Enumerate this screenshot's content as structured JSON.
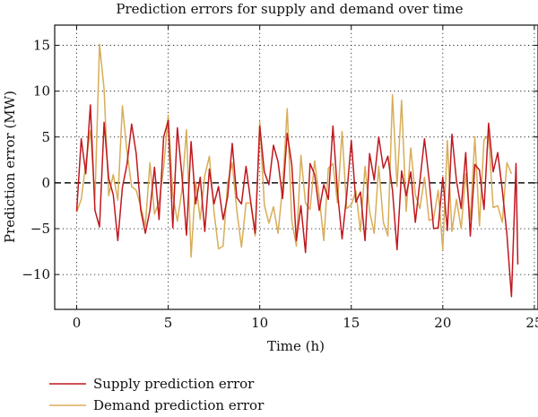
{
  "chart_data": {
    "type": "line",
    "title": "Prediction errors for supply and demand over time",
    "xlabel": "Time (h)",
    "ylabel": "Prediction error (MW)",
    "xlim": [
      -1.2,
      25.2
    ],
    "ylim": [
      -13.8,
      17.2
    ],
    "xticks": [
      0,
      5,
      10,
      15,
      20,
      25
    ],
    "yticks": [
      -10,
      -5,
      0,
      5,
      10,
      15
    ],
    "grid": true,
    "zero_line": true,
    "legend_position": "bottom-left",
    "series": [
      {
        "name": "Supply prediction error",
        "color": "#c0181f",
        "points": [
          [
            0.0,
            -3.1
          ],
          [
            0.25,
            4.8
          ],
          [
            0.5,
            1.0
          ],
          [
            0.75,
            8.5
          ],
          [
            1.0,
            -3.0
          ],
          [
            1.25,
            -4.8
          ],
          [
            1.5,
            6.6
          ],
          [
            1.75,
            0.5
          ],
          [
            2.0,
            -1.3
          ],
          [
            2.25,
            -6.3
          ],
          [
            2.5,
            -0.5
          ],
          [
            2.75,
            2.0
          ],
          [
            3.0,
            6.4
          ],
          [
            3.25,
            3.2
          ],
          [
            3.5,
            -3.0
          ],
          [
            3.75,
            -5.5
          ],
          [
            4.0,
            -3.0
          ],
          [
            4.25,
            1.7
          ],
          [
            4.5,
            -4.0
          ],
          [
            4.75,
            5.0
          ],
          [
            5.0,
            6.8
          ],
          [
            5.25,
            -4.9
          ],
          [
            5.5,
            6.0
          ],
          [
            5.75,
            0.8
          ],
          [
            6.0,
            -5.7
          ],
          [
            6.25,
            4.5
          ],
          [
            6.5,
            -2.3
          ],
          [
            6.75,
            0.6
          ],
          [
            7.0,
            -5.3
          ],
          [
            7.25,
            1.5
          ],
          [
            7.5,
            -2.3
          ],
          [
            7.75,
            -0.4
          ],
          [
            8.0,
            -4.0
          ],
          [
            8.25,
            -1.5
          ],
          [
            8.5,
            4.3
          ],
          [
            8.75,
            -1.6
          ],
          [
            9.0,
            -2.3
          ],
          [
            9.25,
            1.8
          ],
          [
            9.5,
            -2.0
          ],
          [
            9.75,
            -5.5
          ],
          [
            10.0,
            6.2
          ],
          [
            10.25,
            1.2
          ],
          [
            10.5,
            -0.2
          ],
          [
            10.75,
            4.1
          ],
          [
            11.0,
            2.3
          ],
          [
            11.25,
            -1.7
          ],
          [
            11.5,
            5.4
          ],
          [
            11.75,
            2.0
          ],
          [
            12.0,
            -6.3
          ],
          [
            12.25,
            -2.5
          ],
          [
            12.5,
            -7.6
          ],
          [
            12.75,
            2.1
          ],
          [
            13.0,
            0.9
          ],
          [
            13.25,
            -3.0
          ],
          [
            13.5,
            -0.2
          ],
          [
            13.75,
            -1.8
          ],
          [
            14.0,
            6.2
          ],
          [
            14.25,
            -1.0
          ],
          [
            14.5,
            -6.1
          ],
          [
            14.75,
            -1.4
          ],
          [
            15.0,
            4.6
          ],
          [
            15.25,
            -2.1
          ],
          [
            15.5,
            -1.0
          ],
          [
            15.75,
            -6.3
          ],
          [
            16.0,
            3.2
          ],
          [
            16.25,
            0.3
          ],
          [
            16.5,
            5.0
          ],
          [
            16.75,
            1.6
          ],
          [
            17.0,
            2.9
          ],
          [
            17.25,
            -0.8
          ],
          [
            17.5,
            -7.3
          ],
          [
            17.75,
            1.3
          ],
          [
            18.0,
            -1.4
          ],
          [
            18.25,
            1.2
          ],
          [
            18.5,
            -4.3
          ],
          [
            18.75,
            0.2
          ],
          [
            19.0,
            4.8
          ],
          [
            19.25,
            0.4
          ],
          [
            19.5,
            -5.0
          ],
          [
            19.75,
            -4.9
          ],
          [
            20.0,
            0.6
          ],
          [
            20.25,
            -5.2
          ],
          [
            20.5,
            5.3
          ],
          [
            20.75,
            0.2
          ],
          [
            21.0,
            -2.8
          ],
          [
            21.25,
            3.3
          ],
          [
            21.5,
            -5.8
          ],
          [
            21.75,
            2.0
          ],
          [
            22.0,
            1.4
          ],
          [
            22.25,
            -2.9
          ],
          [
            22.5,
            6.5
          ],
          [
            22.75,
            1.2
          ],
          [
            23.0,
            3.3
          ],
          [
            23.25,
            -0.8
          ],
          [
            23.5,
            -5.6
          ],
          [
            23.75,
            -12.4
          ],
          [
            24.0,
            2.1
          ],
          [
            24.1,
            -8.9
          ]
        ]
      },
      {
        "name": "Demand prediction error",
        "color": "#d8ad58",
        "points": [
          [
            0.0,
            -3.2
          ],
          [
            0.25,
            -1.8
          ],
          [
            0.5,
            2.1
          ],
          [
            0.75,
            5.7
          ],
          [
            1.0,
            -1.8
          ],
          [
            1.25,
            15.1
          ],
          [
            1.5,
            10.2
          ],
          [
            1.75,
            -1.4
          ],
          [
            2.0,
            0.9
          ],
          [
            2.25,
            -1.9
          ],
          [
            2.5,
            8.4
          ],
          [
            2.75,
            3.4
          ],
          [
            3.0,
            -0.4
          ],
          [
            3.25,
            -0.8
          ],
          [
            3.5,
            -2.6
          ],
          [
            3.75,
            -4.7
          ],
          [
            4.0,
            2.2
          ],
          [
            4.25,
            -3.4
          ],
          [
            4.5,
            -2.1
          ],
          [
            4.75,
            1.6
          ],
          [
            5.0,
            7.4
          ],
          [
            5.25,
            -1.3
          ],
          [
            5.5,
            -4.2
          ],
          [
            5.75,
            -0.8
          ],
          [
            6.0,
            5.8
          ],
          [
            6.25,
            -8.1
          ],
          [
            6.5,
            0.1
          ],
          [
            6.75,
            -4.0
          ],
          [
            7.0,
            0.8
          ],
          [
            7.25,
            2.9
          ],
          [
            7.5,
            -3.1
          ],
          [
            7.75,
            -7.2
          ],
          [
            8.0,
            -6.9
          ],
          [
            8.25,
            0.0
          ],
          [
            8.5,
            2.2
          ],
          [
            8.75,
            -3.0
          ],
          [
            9.0,
            -7.0
          ],
          [
            9.25,
            -2.2
          ],
          [
            9.5,
            -2.2
          ],
          [
            9.75,
            -5.8
          ],
          [
            10.0,
            6.7
          ],
          [
            10.25,
            -2.4
          ],
          [
            10.5,
            -4.4
          ],
          [
            10.75,
            -2.6
          ],
          [
            11.0,
            -5.5
          ],
          [
            11.25,
            -0.4
          ],
          [
            11.5,
            8.1
          ],
          [
            11.75,
            -4.1
          ],
          [
            12.0,
            -6.9
          ],
          [
            12.25,
            3.0
          ],
          [
            12.5,
            -2.2
          ],
          [
            12.75,
            -2.9
          ],
          [
            13.0,
            2.4
          ],
          [
            13.25,
            -1.5
          ],
          [
            13.5,
            -6.3
          ],
          [
            13.75,
            1.6
          ],
          [
            14.0,
            2.1
          ],
          [
            14.25,
            -2.2
          ],
          [
            14.5,
            5.6
          ],
          [
            14.75,
            -2.8
          ],
          [
            15.0,
            -2.4
          ],
          [
            15.25,
            -0.9
          ],
          [
            15.5,
            -5.3
          ],
          [
            15.75,
            1.8
          ],
          [
            16.0,
            -3.1
          ],
          [
            16.25,
            -5.5
          ],
          [
            16.5,
            1.8
          ],
          [
            16.75,
            -4.3
          ],
          [
            17.0,
            -5.8
          ],
          [
            17.25,
            9.6
          ],
          [
            17.5,
            -0.4
          ],
          [
            17.75,
            9.0
          ],
          [
            18.0,
            -3.1
          ],
          [
            18.25,
            3.8
          ],
          [
            18.5,
            -1.3
          ],
          [
            18.75,
            -2.8
          ],
          [
            19.0,
            0.6
          ],
          [
            19.25,
            -4.1
          ],
          [
            19.5,
            -3.9
          ],
          [
            19.75,
            -0.8
          ],
          [
            20.0,
            -7.3
          ],
          [
            20.25,
            4.6
          ],
          [
            20.5,
            -5.3
          ],
          [
            20.75,
            -1.8
          ],
          [
            21.0,
            -5.0
          ],
          [
            21.25,
            1.0
          ],
          [
            21.5,
            -4.0
          ],
          [
            21.75,
            5.0
          ],
          [
            22.0,
            -4.7
          ],
          [
            22.25,
            4.7
          ],
          [
            22.5,
            5.2
          ],
          [
            22.75,
            -2.7
          ],
          [
            23.0,
            -2.5
          ],
          [
            23.25,
            -4.3
          ],
          [
            23.5,
            2.2
          ],
          [
            23.75,
            1.0
          ]
        ]
      }
    ]
  }
}
